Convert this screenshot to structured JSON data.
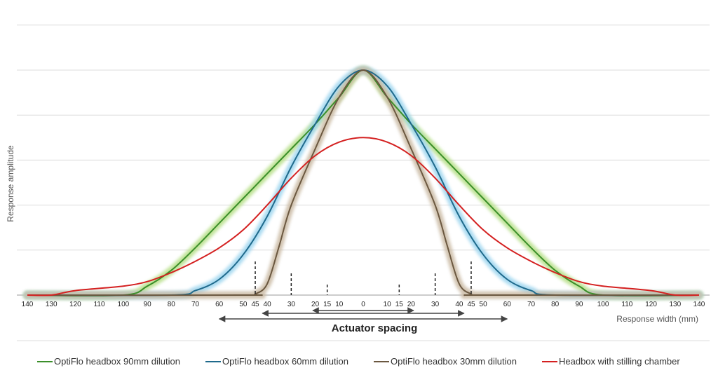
{
  "chart_data": {
    "type": "line",
    "title": "",
    "xlabel": "Response width (mm)",
    "ylabel": "Response amplitude",
    "x_tick_labels": [
      "140",
      "130",
      "120",
      "110",
      "100",
      "90",
      "80",
      "70",
      "60",
      "50",
      "45",
      "40",
      "30",
      "20",
      "15",
      "10",
      "0",
      "10",
      "15",
      "20",
      "30",
      "40",
      "45",
      "50",
      "60",
      "70",
      "80",
      "90",
      "100",
      "110",
      "120",
      "130",
      "140"
    ],
    "x_tick_positions": [
      -140,
      -130,
      -120,
      -110,
      -100,
      -90,
      -80,
      -70,
      -60,
      -50,
      -45,
      -40,
      -30,
      -20,
      -15,
      -10,
      0,
      10,
      15,
      20,
      30,
      40,
      45,
      50,
      60,
      70,
      80,
      90,
      100,
      110,
      120,
      130,
      140
    ],
    "xlim": [
      -140,
      140
    ],
    "ylim": [
      0,
      1.2
    ],
    "grid": "horizontal",
    "y_tick_labels_shown": false,
    "legend_position": "bottom",
    "series": [
      {
        "name": "OptiFlo headbox 90mm dilution",
        "color": "#3b8f2a",
        "glow": "#b8e08a",
        "x": [
          -140,
          -100,
          -90,
          -80,
          -70,
          -60,
          -50,
          -40,
          -30,
          -20,
          -10,
          0,
          10,
          20,
          30,
          40,
          50,
          60,
          70,
          80,
          90,
          100,
          140
        ],
        "y": [
          0,
          0,
          0.04,
          0.11,
          0.21,
          0.32,
          0.43,
          0.54,
          0.65,
          0.76,
          0.88,
          1.0,
          0.88,
          0.76,
          0.65,
          0.54,
          0.43,
          0.32,
          0.21,
          0.11,
          0.04,
          0,
          0
        ]
      },
      {
        "name": "OptiFlo headbox 60mm dilution",
        "color": "#1f6a8c",
        "glow": "#9fd6ef",
        "x": [
          -140,
          -80,
          -70,
          -60,
          -50,
          -40,
          -30,
          -20,
          -10,
          0,
          10,
          20,
          30,
          40,
          50,
          60,
          70,
          80,
          140
        ],
        "y": [
          0,
          0,
          0.02,
          0.07,
          0.18,
          0.35,
          0.57,
          0.76,
          0.93,
          1.0,
          0.93,
          0.76,
          0.57,
          0.35,
          0.18,
          0.07,
          0.02,
          0,
          0
        ]
      },
      {
        "name": "OptiFlo headbox 30mm dilution",
        "color": "#6b5840",
        "glow": "#cbbba5",
        "x": [
          -140,
          -50,
          -45,
          -40,
          -35,
          -30,
          -20,
          -10,
          0,
          10,
          20,
          30,
          35,
          40,
          45,
          50,
          140
        ],
        "y": [
          0,
          0,
          0.005,
          0.05,
          0.22,
          0.4,
          0.65,
          0.88,
          1.0,
          0.88,
          0.65,
          0.4,
          0.22,
          0.05,
          0.005,
          0,
          0
        ]
      },
      {
        "name": "Headbox with stilling chamber",
        "color": "#d42020",
        "x": [
          -140,
          -130,
          -120,
          -100,
          -90,
          -80,
          -70,
          -60,
          -50,
          -40,
          -30,
          -20,
          -10,
          0,
          10,
          20,
          30,
          40,
          50,
          60,
          70,
          80,
          90,
          100,
          120,
          130,
          140
        ],
        "y": [
          0,
          0,
          0.02,
          0.04,
          0.06,
          0.1,
          0.15,
          0.21,
          0.29,
          0.4,
          0.52,
          0.62,
          0.68,
          0.7,
          0.68,
          0.62,
          0.52,
          0.4,
          0.29,
          0.21,
          0.15,
          0.1,
          0.06,
          0.04,
          0.02,
          0,
          0
        ]
      }
    ],
    "annotations": {
      "dashed_markers": [
        -45,
        -30,
        -15,
        15,
        30,
        45
      ],
      "spacing_arrows": [
        [
          -60,
          60
        ],
        [
          -42,
          42
        ],
        [
          -21,
          21
        ]
      ],
      "spacing_label": "Actuator spacing"
    }
  }
}
